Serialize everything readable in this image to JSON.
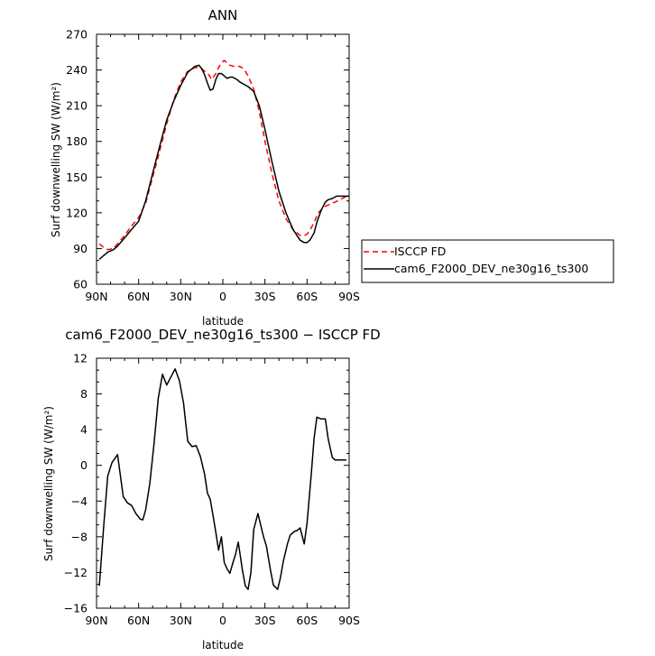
{
  "chart_data": [
    {
      "type": "line",
      "title": "ANN",
      "xlabel": "latitude",
      "ylabel": "Surf downwelling SW (W/m²)",
      "xlim": [
        90,
        -90
      ],
      "ylim": [
        60,
        270
      ],
      "xticks": [
        90,
        60,
        30,
        0,
        -30,
        -60,
        -90
      ],
      "xtick_labels": [
        "90N",
        "60N",
        "30N",
        "0",
        "30S",
        "60S",
        "90S"
      ],
      "yticks": [
        60,
        90,
        120,
        150,
        180,
        210,
        240,
        270
      ],
      "grid": false,
      "legend_position": "right",
      "series": [
        {
          "name": "ISCCP FD",
          "color": "#ff0000",
          "dash": "dashed",
          "x": [
            88,
            85,
            82,
            78,
            75,
            70,
            65,
            60,
            55,
            50,
            45,
            40,
            35,
            30,
            25,
            20,
            17,
            15,
            12,
            10,
            8,
            5,
            3,
            1,
            -1,
            -3,
            -5,
            -8,
            -12,
            -15,
            -18,
            -22,
            -26,
            -30,
            -35,
            -40,
            -45,
            -50,
            -55,
            -58,
            -60,
            -62,
            -65,
            -68,
            -72,
            -76,
            -80,
            -85,
            -90
          ],
          "y": [
            94,
            91,
            89,
            90,
            94,
            101,
            109,
            116,
            128,
            150,
            172,
            195,
            215,
            230,
            239,
            242,
            242,
            241,
            238,
            236,
            232,
            237,
            242,
            246,
            248,
            246,
            244,
            243,
            243,
            241,
            235,
            224,
            205,
            180,
            153,
            130,
            115,
            106,
            101,
            101,
            102,
            105,
            112,
            120,
            125,
            127,
            129,
            132,
            135
          ]
        },
        {
          "name": "cam6_F2000_DEV_ne30g16_ts300",
          "color": "#000000",
          "dash": "solid",
          "x": [
            88,
            85,
            82,
            78,
            75,
            70,
            65,
            60,
            55,
            50,
            45,
            40,
            35,
            30,
            25,
            20,
            17,
            15,
            13,
            11,
            9,
            7,
            5,
            3,
            1,
            -1,
            -3,
            -5,
            -7,
            -10,
            -12,
            -15,
            -18,
            -22,
            -26,
            -30,
            -35,
            -40,
            -45,
            -50,
            -55,
            -58,
            -60,
            -62,
            -65,
            -67,
            -70,
            -73,
            -75,
            -78,
            -81,
            -85,
            -90
          ],
          "y": [
            81,
            84,
            87,
            89,
            92,
            99,
            106,
            113,
            130,
            153,
            176,
            198,
            214,
            227,
            238,
            243,
            244,
            241,
            236,
            229,
            223,
            224,
            232,
            237,
            237,
            235,
            233,
            234,
            234,
            232,
            230,
            228,
            226,
            222,
            210,
            190,
            163,
            138,
            120,
            106,
            97,
            95,
            95,
            97,
            103,
            112,
            122,
            129,
            131,
            132,
            134,
            134,
            134
          ]
        }
      ]
    },
    {
      "type": "line",
      "title": "cam6_F2000_DEV_ne30g16_ts300 − ISCCP FD",
      "xlabel": "latitude",
      "ylabel": "Surf downwelling SW (W/m²)",
      "xlim": [
        90,
        -90
      ],
      "ylim": [
        -16,
        12
      ],
      "xticks": [
        90,
        60,
        30,
        0,
        -30,
        -60,
        -90
      ],
      "xtick_labels": [
        "90N",
        "60N",
        "30N",
        "0",
        "30S",
        "60S",
        "90S"
      ],
      "yticks": [
        -16,
        -12,
        -8,
        -4,
        0,
        4,
        8,
        12
      ],
      "grid": false,
      "series": [
        {
          "color": "#000000",
          "dash": "solid",
          "x": [
            88,
            85,
            82,
            79,
            75,
            71,
            68,
            65,
            62,
            59,
            57,
            55,
            52,
            49,
            46,
            43,
            40,
            37,
            34,
            31,
            28,
            25,
            22,
            19,
            16,
            13,
            11,
            9,
            7,
            5,
            3,
            1,
            -1,
            -3,
            -5,
            -7,
            -9,
            -11,
            -14,
            -16,
            -18,
            -20,
            -22,
            -25,
            -27,
            -29,
            -31,
            -34,
            -36,
            -39,
            -41,
            -43,
            -46,
            -48,
            -51,
            -53,
            -55,
            -58,
            -60,
            -63,
            -65,
            -67,
            -70,
            -73,
            -75,
            -78,
            -80,
            -83,
            -85,
            -88
          ],
          "y": [
            -13.5,
            -7,
            -1.2,
            0.3,
            1.2,
            -3.5,
            -4.2,
            -4.5,
            -5.4,
            -6.0,
            -6.1,
            -5.0,
            -2.0,
            2.5,
            7.5,
            10.2,
            9.0,
            9.9,
            10.8,
            9.5,
            7.0,
            2.7,
            2.1,
            2.2,
            1.0,
            -1.0,
            -3.1,
            -3.8,
            -5.6,
            -7.5,
            -9.5,
            -8.0,
            -10.9,
            -11.6,
            -12.1,
            -11.0,
            -10.0,
            -8.6,
            -11.8,
            -13.5,
            -13.9,
            -12.0,
            -7.2,
            -5.4,
            -6.7,
            -8.0,
            -9.0,
            -11.8,
            -13.4,
            -13.9,
            -12.6,
            -10.8,
            -8.8,
            -7.8,
            -7.4,
            -7.3,
            -7.0,
            -8.8,
            -6.5,
            -1.0,
            3.0,
            5.4,
            5.2,
            5.2,
            3.0,
            0.9,
            0.6,
            0.6,
            0.6,
            0.6
          ]
        }
      ]
    }
  ]
}
